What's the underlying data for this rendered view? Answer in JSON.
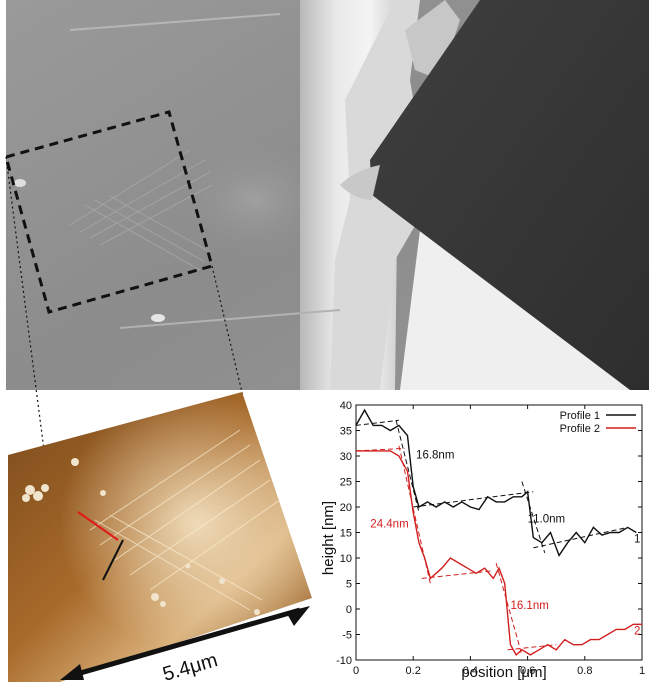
{
  "scale_bar": {
    "label": "5.4μm"
  },
  "colors": {
    "profile1": "#111111",
    "profile2": "#d21f1f",
    "afm_base": "#9a5a1f"
  },
  "chart_data": {
    "type": "line",
    "xlabel": "position [μm]",
    "ylabel": "height [nm]",
    "xlim": [
      0,
      1
    ],
    "ylim": [
      -10,
      40
    ],
    "x_ticks": [
      "0",
      "0.2",
      "0.4",
      "0.6",
      "0.8",
      "1"
    ],
    "y_ticks": [
      "40",
      "35",
      "30",
      "25",
      "20",
      "15",
      "10",
      "5",
      "0",
      "-5",
      "-10"
    ],
    "legend_position": "top-right",
    "grid": false,
    "series": [
      {
        "name": "Profile 1",
        "end_label": "1",
        "color": "#111111",
        "x": [
          0.0,
          0.03,
          0.06,
          0.09,
          0.12,
          0.15,
          0.18,
          0.2,
          0.22,
          0.25,
          0.28,
          0.31,
          0.34,
          0.37,
          0.4,
          0.43,
          0.46,
          0.49,
          0.52,
          0.55,
          0.58,
          0.6,
          0.62,
          0.65,
          0.68,
          0.71,
          0.74,
          0.77,
          0.8,
          0.83,
          0.86,
          0.89,
          0.92,
          0.95,
          0.98
        ],
        "y": [
          36,
          39,
          36,
          36,
          35,
          36,
          34,
          24,
          20,
          21,
          20,
          21,
          20,
          21,
          20,
          19.5,
          22,
          21,
          21,
          22,
          22,
          23,
          14,
          13,
          15,
          10.5,
          13,
          15,
          13,
          16,
          14.5,
          15,
          15,
          16,
          15
        ]
      },
      {
        "name": "Profile 2",
        "end_label": "2",
        "color": "#d21f1f",
        "x": [
          0.0,
          0.03,
          0.06,
          0.09,
          0.12,
          0.15,
          0.18,
          0.2,
          0.22,
          0.24,
          0.26,
          0.28,
          0.3,
          0.33,
          0.36,
          0.39,
          0.42,
          0.45,
          0.48,
          0.5,
          0.52,
          0.54,
          0.56,
          0.58,
          0.61,
          0.64,
          0.67,
          0.7,
          0.73,
          0.76,
          0.79,
          0.82,
          0.85,
          0.88,
          0.91,
          0.94,
          0.97,
          1.0
        ],
        "y": [
          31,
          31,
          31,
          31,
          31,
          30,
          27,
          19,
          13,
          10,
          6,
          7,
          8,
          10,
          9,
          8,
          7,
          8,
          6,
          8,
          5,
          -7,
          -9,
          -8,
          -9,
          -8,
          -7,
          -8,
          -6,
          -7,
          -7,
          -6,
          -6,
          -5,
          -4,
          -4,
          -3,
          -3
        ]
      }
    ],
    "fit_lines": [
      {
        "series": "Profile 1",
        "x": [
          0.0,
          0.15
        ],
        "y": [
          36,
          37
        ]
      },
      {
        "series": "Profile 1",
        "x": [
          0.14,
          0.22
        ],
        "y": [
          37,
          19
        ]
      },
      {
        "series": "Profile 1",
        "x": [
          0.2,
          0.62
        ],
        "y": [
          20,
          23
        ]
      },
      {
        "series": "Profile 1",
        "x": [
          0.58,
          0.66
        ],
        "y": [
          25,
          11
        ]
      },
      {
        "series": "Profile 1",
        "x": [
          0.62,
          0.95
        ],
        "y": [
          12,
          16
        ]
      },
      {
        "series": "Profile 2",
        "x": [
          0.0,
          0.17
        ],
        "y": [
          31,
          31.5
        ]
      },
      {
        "series": "Profile 2",
        "x": [
          0.15,
          0.26
        ],
        "y": [
          32,
          5
        ]
      },
      {
        "series": "Profile 2",
        "x": [
          0.23,
          0.48
        ],
        "y": [
          6,
          7.5
        ]
      },
      {
        "series": "Profile 2",
        "x": [
          0.49,
          0.58
        ],
        "y": [
          9,
          -9
        ]
      },
      {
        "series": "Profile 2",
        "x": [
          0.53,
          0.7
        ],
        "y": [
          -8,
          -7
        ]
      }
    ],
    "annotations": [
      {
        "text": "16.8nm",
        "x": 0.21,
        "y": 29.5,
        "series": "Profile 1"
      },
      {
        "text": "11.0nm",
        "x": 0.6,
        "y": 17,
        "series": "Profile 1"
      },
      {
        "text": "24.4nm",
        "x": 0.05,
        "y": 16,
        "series": "Profile 2"
      },
      {
        "text": "16.1nm",
        "x": 0.54,
        "y": 0,
        "series": "Profile 2"
      }
    ]
  }
}
